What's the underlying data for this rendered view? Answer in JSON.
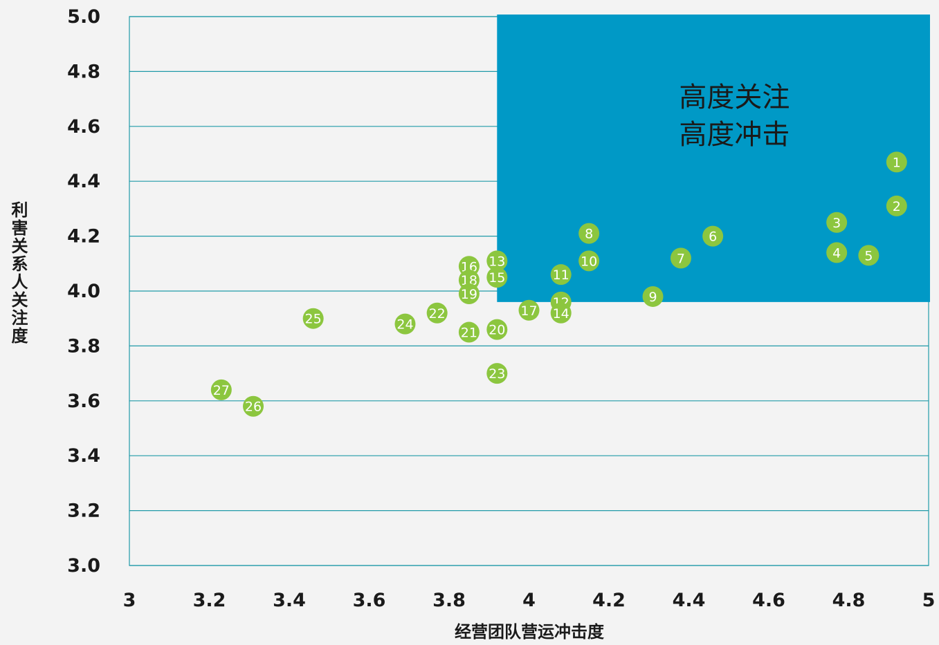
{
  "chart_data": {
    "type": "scatter",
    "xlabel": "经营团队营运冲击度",
    "ylabel": "利害关系人关注度",
    "xlim": [
      3,
      5
    ],
    "ylim": [
      3.0,
      5.0
    ],
    "x_ticks": [
      "3",
      "3.2",
      "3.4",
      "3.6",
      "3.8",
      "4",
      "4.2",
      "4.4",
      "4.6",
      "4.8",
      "5"
    ],
    "y_ticks": [
      "3.0",
      "3.2",
      "3.4",
      "3.6",
      "3.8",
      "4.0",
      "4.2",
      "4.4",
      "4.6",
      "4.8",
      "5.0"
    ],
    "grid": "horizontal",
    "highlight_region": {
      "x_range": [
        3.92,
        5.0
      ],
      "y_range": [
        3.96,
        5.0
      ],
      "label_lines": [
        "高度关注",
        "高度冲击"
      ],
      "color": "#0099c6"
    },
    "point_color": "#8cc63f",
    "grid_color": "#1f9aa8",
    "points": [
      {
        "label": "1",
        "x": 4.92,
        "y": 4.47
      },
      {
        "label": "2",
        "x": 4.92,
        "y": 4.31
      },
      {
        "label": "3",
        "x": 4.77,
        "y": 4.25
      },
      {
        "label": "4",
        "x": 4.77,
        "y": 4.14
      },
      {
        "label": "5",
        "x": 4.85,
        "y": 4.13
      },
      {
        "label": "6",
        "x": 4.46,
        "y": 4.2
      },
      {
        "label": "7",
        "x": 4.38,
        "y": 4.12
      },
      {
        "label": "8",
        "x": 4.15,
        "y": 4.21
      },
      {
        "label": "9",
        "x": 4.31,
        "y": 3.98
      },
      {
        "label": "10",
        "x": 4.15,
        "y": 4.11
      },
      {
        "label": "11",
        "x": 4.08,
        "y": 4.06
      },
      {
        "label": "12",
        "x": 4.08,
        "y": 3.96
      },
      {
        "label": "13",
        "x": 3.92,
        "y": 4.11
      },
      {
        "label": "14",
        "x": 4.08,
        "y": 3.92
      },
      {
        "label": "15",
        "x": 3.92,
        "y": 4.05
      },
      {
        "label": "16",
        "x": 3.85,
        "y": 4.09
      },
      {
        "label": "17",
        "x": 4.0,
        "y": 3.93
      },
      {
        "label": "18",
        "x": 3.85,
        "y": 4.04
      },
      {
        "label": "19",
        "x": 3.85,
        "y": 3.99
      },
      {
        "label": "20",
        "x": 3.92,
        "y": 3.86
      },
      {
        "label": "21",
        "x": 3.85,
        "y": 3.85
      },
      {
        "label": "22",
        "x": 3.77,
        "y": 3.92
      },
      {
        "label": "23",
        "x": 3.92,
        "y": 3.7
      },
      {
        "label": "24",
        "x": 3.69,
        "y": 3.88
      },
      {
        "label": "25",
        "x": 3.46,
        "y": 3.9
      },
      {
        "label": "26",
        "x": 3.31,
        "y": 3.58
      },
      {
        "label": "27",
        "x": 3.23,
        "y": 3.64
      }
    ]
  }
}
